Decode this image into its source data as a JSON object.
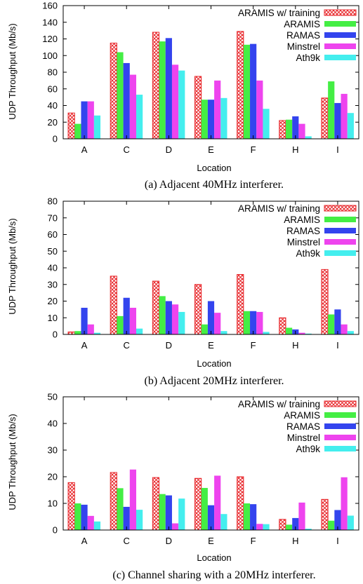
{
  "chart_data": [
    {
      "type": "bar",
      "title": "",
      "caption": "(a) Adjacent 40MHz interferer.",
      "xlabel": "Location",
      "ylabel": "UDP Throughput (Mb/s)",
      "ylim": [
        0,
        160
      ],
      "yticks": [
        "0",
        "20",
        "40",
        "60",
        "80",
        "100",
        "120",
        "140",
        "160"
      ],
      "categories": [
        "A",
        "C",
        "D",
        "E",
        "F",
        "H",
        "I"
      ],
      "legend_position": "top-right",
      "grid": false,
      "series": [
        {
          "name": "ARAMIS w/ training",
          "color": "#e8262a",
          "pattern": "crosshatch",
          "values": [
            31,
            115,
            128,
            75,
            129,
            22,
            49
          ]
        },
        {
          "name": "ARAMIS",
          "color": "#44ee44",
          "values": [
            18,
            104,
            117,
            47,
            113,
            23,
            69
          ]
        },
        {
          "name": "RAMAS",
          "color": "#3344ee",
          "values": [
            45,
            91,
            121,
            47,
            114,
            27,
            43
          ]
        },
        {
          "name": "Minstrel",
          "color": "#ee44ee",
          "values": [
            45,
            77,
            89,
            70,
            70,
            18,
            54
          ]
        },
        {
          "name": "Ath9k",
          "color": "#44eeee",
          "values": [
            28,
            53,
            82,
            49,
            36,
            3,
            31
          ]
        }
      ]
    },
    {
      "type": "bar",
      "title": "",
      "caption": "(b) Adjacent 20MHz interferer.",
      "xlabel": "Location",
      "ylabel": "UDP Throughput (Mb/s)",
      "ylim": [
        0,
        80
      ],
      "yticks": [
        "0",
        "10",
        "20",
        "30",
        "40",
        "50",
        "60",
        "70",
        "80"
      ],
      "categories": [
        "A",
        "C",
        "D",
        "E",
        "F",
        "H",
        "I"
      ],
      "legend_position": "top-right",
      "grid": false,
      "series": [
        {
          "name": "ARAMIS w/ training",
          "color": "#e8262a",
          "pattern": "crosshatch",
          "values": [
            1.5,
            35,
            32,
            30,
            36,
            10,
            39
          ]
        },
        {
          "name": "ARAMIS",
          "color": "#44ee44",
          "values": [
            2,
            11,
            23,
            6,
            14,
            4,
            12
          ]
        },
        {
          "name": "RAMAS",
          "color": "#3344ee",
          "values": [
            16,
            22,
            20,
            20,
            14,
            3,
            15
          ]
        },
        {
          "name": "Minstrel",
          "color": "#ee44ee",
          "values": [
            6,
            16,
            18,
            13,
            13.5,
            1,
            6
          ]
        },
        {
          "name": "Ath9k",
          "color": "#44eeee",
          "values": [
            1,
            3.5,
            13.5,
            2,
            1.5,
            0.5,
            2
          ]
        }
      ]
    },
    {
      "type": "bar",
      "title": "",
      "caption": "(c) Channel sharing with a 20MHz interferer.",
      "xlabel": "Location",
      "ylabel": "UDP Throughput (Mb/s)",
      "ylim": [
        0,
        50
      ],
      "yticks": [
        "0",
        "10",
        "20",
        "30",
        "40",
        "50"
      ],
      "categories": [
        "A",
        "C",
        "D",
        "E",
        "F",
        "H",
        "I"
      ],
      "legend_position": "top-right",
      "grid": false,
      "series": [
        {
          "name": "ARAMIS w/ training",
          "color": "#e8262a",
          "pattern": "crosshatch",
          "values": [
            17.8,
            21.6,
            19.7,
            19.4,
            20,
            4,
            11.5
          ]
        },
        {
          "name": "ARAMIS",
          "color": "#44ee44",
          "values": [
            10,
            15.7,
            13.5,
            15.8,
            10,
            2,
            3.5
          ]
        },
        {
          "name": "RAMAS",
          "color": "#3344ee",
          "values": [
            9.5,
            8.7,
            13,
            9.3,
            9.7,
            4.5,
            7.5
          ]
        },
        {
          "name": "Minstrel",
          "color": "#ee44ee",
          "values": [
            5.3,
            22.7,
            2.5,
            20.4,
            2.3,
            10.3,
            19.8
          ]
        },
        {
          "name": "Ath9k",
          "color": "#44eeee",
          "values": [
            3.2,
            7.6,
            11.8,
            6,
            2.2,
            0.5,
            5.4
          ]
        }
      ]
    }
  ]
}
